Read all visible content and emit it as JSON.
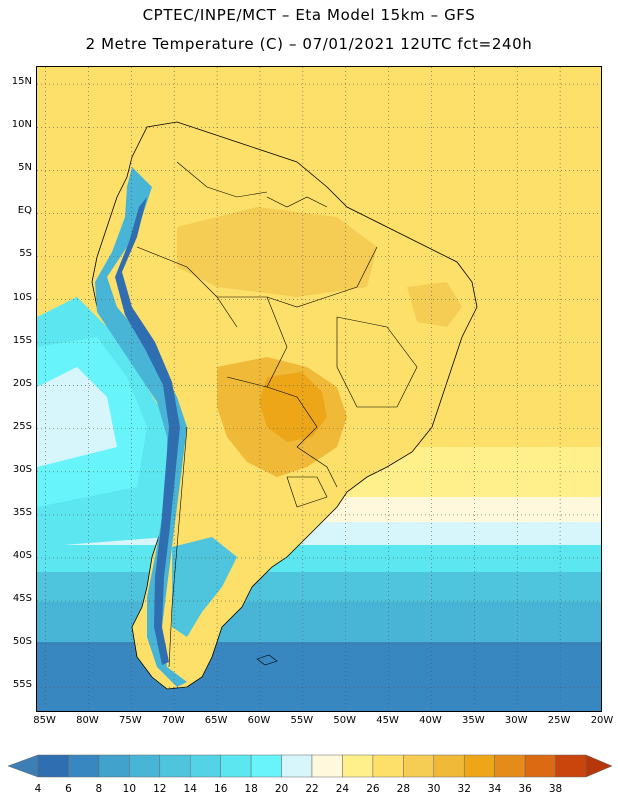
{
  "header": {
    "line1": "CPTEC/INPE/MCT –  Eta Model 15km – GFS",
    "line2": "2 Metre Temperature (C) – 07/01/2021 12UTC fct=240h"
  },
  "map": {
    "projection": "cylindrical",
    "lon_range": [
      -86,
      -20
    ],
    "lat_range": [
      -58,
      17
    ],
    "lat_ticks": [
      "15N",
      "10N",
      "5N",
      "EQ",
      "5S",
      "10S",
      "15S",
      "20S",
      "25S",
      "30S",
      "35S",
      "40S",
      "45S",
      "50S",
      "55S"
    ],
    "lon_ticks": [
      "85W",
      "80W",
      "75W",
      "70W",
      "65W",
      "60W",
      "55W",
      "50W",
      "45W",
      "40W",
      "35W",
      "30W",
      "25W",
      "20W"
    ],
    "gridlines": "dotted",
    "field": "2m air temperature",
    "units": "C"
  },
  "colorbar": {
    "labels": [
      "4",
      "6",
      "8",
      "10",
      "12",
      "14",
      "16",
      "18",
      "20",
      "22",
      "24",
      "26",
      "28",
      "30",
      "32",
      "34",
      "36",
      "38"
    ],
    "colors": [
      "#3d7fb5",
      "#2f6eb0",
      "#3887c0",
      "#41a2cb",
      "#49b5d6",
      "#4fc4dd",
      "#55d3e6",
      "#5ce6f0",
      "#68f4fb",
      "#d6f6fb",
      "#fff8dc",
      "#fff08c",
      "#fde069",
      "#f5cd55",
      "#f0ba38",
      "#eda617",
      "#e58b19",
      "#db6a12",
      "#c9450c",
      "#b5370a"
    ]
  }
}
